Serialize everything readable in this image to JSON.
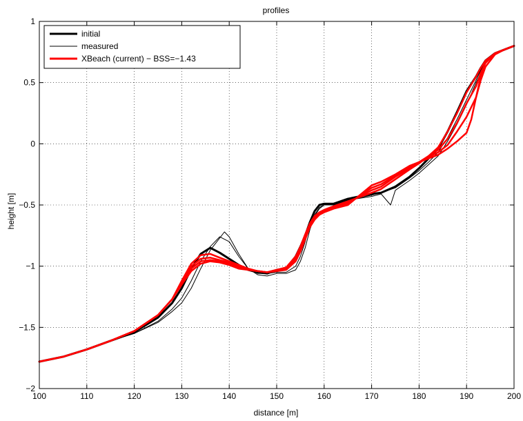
{
  "chart_data": {
    "type": "line",
    "title": "profiles",
    "xlabel": "distance [m]",
    "ylabel": "height [m]",
    "xlim": [
      100,
      200
    ],
    "ylim": [
      -2,
      1
    ],
    "xticks": [
      100,
      110,
      120,
      130,
      140,
      150,
      160,
      170,
      180,
      190,
      200
    ],
    "yticks": [
      -2,
      -1.5,
      -1,
      -0.5,
      0,
      0.5,
      1
    ],
    "xtick_labels": [
      "100",
      "110",
      "120",
      "130",
      "140",
      "150",
      "160",
      "170",
      "180",
      "190",
      "200"
    ],
    "ytick_labels": [
      "−2",
      "−1.5",
      "−1",
      "−0.5",
      "0",
      "0.5",
      "1"
    ],
    "grid": true,
    "legend_position": "top-left",
    "legend": [
      {
        "label": "initial",
        "color": "#000000",
        "width": "thick"
      },
      {
        "label": "measured",
        "color": "#000000",
        "width": "thin"
      },
      {
        "label": "XBeach (current) − BSS=−1.43",
        "color": "#ff0000",
        "width": "thick"
      }
    ],
    "series": [
      {
        "name": "initial",
        "color": "#000000",
        "lineWidth": 3,
        "x": [
          100,
          105,
          110,
          115,
          120,
          125,
          128,
          130,
          132,
          134,
          136,
          138,
          140,
          142,
          144,
          146,
          148,
          150,
          152,
          154,
          155,
          156,
          157,
          158,
          159,
          160,
          162,
          165,
          170,
          172,
          175,
          178,
          180,
          182,
          184,
          186,
          188,
          190,
          192,
          193,
          194,
          196,
          198,
          200
        ],
        "y": [
          -1.78,
          -1.74,
          -1.68,
          -1.61,
          -1.54,
          -1.42,
          -1.3,
          -1.18,
          -1.02,
          -0.9,
          -0.85,
          -0.89,
          -0.94,
          -0.99,
          -1.03,
          -1.05,
          -1.06,
          -1.03,
          -1.02,
          -0.92,
          -0.84,
          -0.75,
          -0.64,
          -0.55,
          -0.5,
          -0.49,
          -0.49,
          -0.45,
          -0.41,
          -0.4,
          -0.35,
          -0.27,
          -0.2,
          -0.12,
          -0.04,
          0.1,
          0.26,
          0.43,
          0.55,
          0.62,
          0.68,
          0.74,
          0.77,
          0.8
        ]
      },
      {
        "name": "measured",
        "color": "#000000",
        "lineWidth": 1,
        "x": [
          100,
          105,
          110,
          115,
          120,
          125,
          128,
          130,
          132,
          134,
          136,
          138,
          140,
          142,
          144,
          146,
          148,
          150,
          152,
          154,
          155,
          156,
          157,
          158,
          159,
          160,
          162,
          165,
          170,
          172,
          175,
          178,
          180,
          182,
          184,
          186,
          188,
          190,
          192,
          193,
          194,
          196,
          198,
          200
        ],
        "y": [
          -1.78,
          -1.74,
          -1.68,
          -1.61,
          -1.55,
          -1.45,
          -1.35,
          -1.26,
          -1.12,
          -0.96,
          -0.84,
          -0.76,
          -0.8,
          -0.92,
          -1.02,
          -1.06,
          -1.06,
          -1.05,
          -1.05,
          -1.0,
          -0.92,
          -0.8,
          -0.66,
          -0.58,
          -0.52,
          -0.5,
          -0.5,
          -0.46,
          -0.42,
          -0.4,
          -0.36,
          -0.28,
          -0.22,
          -0.15,
          -0.07,
          0.05,
          0.2,
          0.36,
          0.52,
          0.6,
          0.67,
          0.74,
          0.77,
          0.8
        ]
      },
      {
        "name": "measured",
        "color": "#000000",
        "lineWidth": 1,
        "x": [
          100,
          105,
          110,
          115,
          120,
          125,
          128,
          130,
          132,
          134,
          136,
          138,
          139,
          140,
          142,
          144,
          146,
          148,
          150,
          152,
          154,
          155,
          156,
          157,
          158,
          159,
          160,
          162,
          165,
          170,
          172,
          174,
          175,
          178,
          180,
          182,
          184,
          186,
          188,
          190,
          192,
          193,
          194,
          196,
          198,
          200
        ],
        "y": [
          -1.78,
          -1.74,
          -1.68,
          -1.61,
          -1.55,
          -1.46,
          -1.37,
          -1.3,
          -1.18,
          -1.02,
          -0.87,
          -0.77,
          -0.72,
          -0.76,
          -0.9,
          -1.02,
          -1.07,
          -1.08,
          -1.06,
          -1.06,
          -1.03,
          -0.96,
          -0.85,
          -0.7,
          -0.59,
          -0.53,
          -0.5,
          -0.5,
          -0.46,
          -0.43,
          -0.41,
          -0.5,
          -0.38,
          -0.3,
          -0.24,
          -0.17,
          -0.1,
          0.02,
          0.16,
          0.32,
          0.5,
          0.58,
          0.66,
          0.73,
          0.77,
          0.8
        ]
      },
      {
        "name": "XBeach (current) − BSS=−1.43",
        "color": "#ff0000",
        "lineWidth": 2.5,
        "x": [
          100,
          105,
          110,
          115,
          120,
          125,
          128,
          130,
          132,
          134,
          136,
          138,
          140,
          142,
          144,
          146,
          148,
          150,
          152,
          154,
          155,
          156,
          157,
          158,
          159,
          160,
          162,
          165,
          170,
          172,
          175,
          178,
          180,
          182,
          184,
          186,
          188,
          190,
          192,
          193,
          194,
          196,
          198,
          200
        ],
        "y": [
          -1.78,
          -1.74,
          -1.68,
          -1.61,
          -1.53,
          -1.4,
          -1.27,
          -1.12,
          -0.98,
          -0.91,
          -0.9,
          -0.93,
          -0.96,
          -0.99,
          -1.02,
          -1.04,
          -1.05,
          -1.03,
          -1.01,
          -0.92,
          -0.84,
          -0.74,
          -0.65,
          -0.59,
          -0.56,
          -0.54,
          -0.51,
          -0.47,
          -0.4,
          -0.37,
          -0.29,
          -0.21,
          -0.16,
          -0.1,
          -0.03,
          0.1,
          0.25,
          0.42,
          0.55,
          0.62,
          0.68,
          0.74,
          0.77,
          0.8
        ]
      },
      {
        "name": "XBeach (current) − BSS=−1.43",
        "color": "#ff0000",
        "lineWidth": 2.5,
        "x": [
          100,
          105,
          110,
          115,
          120,
          125,
          128,
          130,
          132,
          134,
          136,
          138,
          140,
          142,
          144,
          146,
          148,
          150,
          152,
          154,
          155,
          156,
          157,
          158,
          159,
          160,
          162,
          165,
          170,
          172,
          175,
          178,
          180,
          182,
          184,
          186,
          188,
          190,
          192,
          193,
          194,
          196,
          198,
          200
        ],
        "y": [
          -1.78,
          -1.74,
          -1.68,
          -1.61,
          -1.53,
          -1.4,
          -1.27,
          -1.13,
          -1.0,
          -0.94,
          -0.93,
          -0.95,
          -0.97,
          -1.0,
          -1.03,
          -1.04,
          -1.05,
          -1.03,
          -1.02,
          -0.94,
          -0.86,
          -0.76,
          -0.66,
          -0.6,
          -0.57,
          -0.55,
          -0.52,
          -0.48,
          -0.38,
          -0.35,
          -0.27,
          -0.2,
          -0.15,
          -0.1,
          -0.05,
          0.04,
          0.17,
          0.33,
          0.47,
          0.58,
          0.66,
          0.74,
          0.77,
          0.8
        ]
      },
      {
        "name": "XBeach (current) − BSS=−1.43",
        "color": "#ff0000",
        "lineWidth": 2.5,
        "x": [
          100,
          105,
          110,
          115,
          120,
          125,
          128,
          130,
          132,
          134,
          136,
          138,
          140,
          142,
          144,
          146,
          148,
          150,
          152,
          154,
          155,
          156,
          157,
          158,
          159,
          160,
          162,
          165,
          170,
          172,
          175,
          178,
          180,
          182,
          184,
          186,
          188,
          190,
          192,
          193,
          194,
          196,
          198,
          200
        ],
        "y": [
          -1.78,
          -1.74,
          -1.68,
          -1.61,
          -1.53,
          -1.4,
          -1.27,
          -1.14,
          -1.02,
          -0.96,
          -0.95,
          -0.96,
          -0.98,
          -1.01,
          -1.03,
          -1.04,
          -1.05,
          -1.04,
          -1.02,
          -0.95,
          -0.87,
          -0.77,
          -0.67,
          -0.61,
          -0.57,
          -0.55,
          -0.52,
          -0.49,
          -0.36,
          -0.33,
          -0.26,
          -0.19,
          -0.15,
          -0.11,
          -0.07,
          -0.01,
          0.1,
          0.22,
          0.38,
          0.52,
          0.63,
          0.73,
          0.77,
          0.8
        ]
      },
      {
        "name": "XBeach (current) − BSS=−1.43",
        "color": "#ff0000",
        "lineWidth": 2.5,
        "x": [
          100,
          105,
          110,
          115,
          120,
          125,
          128,
          130,
          132,
          134,
          136,
          138,
          140,
          142,
          144,
          146,
          148,
          150,
          152,
          154,
          155,
          156,
          157,
          158,
          159,
          160,
          162,
          165,
          170,
          172,
          175,
          178,
          180,
          182,
          184,
          186,
          188,
          190,
          191,
          192,
          193,
          194,
          196,
          198,
          200
        ],
        "y": [
          -1.78,
          -1.74,
          -1.68,
          -1.61,
          -1.53,
          -1.4,
          -1.27,
          -1.15,
          -1.04,
          -0.98,
          -0.96,
          -0.97,
          -0.99,
          -1.02,
          -1.03,
          -1.04,
          -1.05,
          -1.04,
          -1.03,
          -0.96,
          -0.88,
          -0.78,
          -0.68,
          -0.62,
          -0.58,
          -0.56,
          -0.53,
          -0.5,
          -0.34,
          -0.31,
          -0.25,
          -0.18,
          -0.15,
          -0.12,
          -0.09,
          -0.04,
          0.02,
          0.09,
          0.2,
          0.38,
          0.55,
          0.67,
          0.74,
          0.77,
          0.8
        ]
      }
    ]
  }
}
